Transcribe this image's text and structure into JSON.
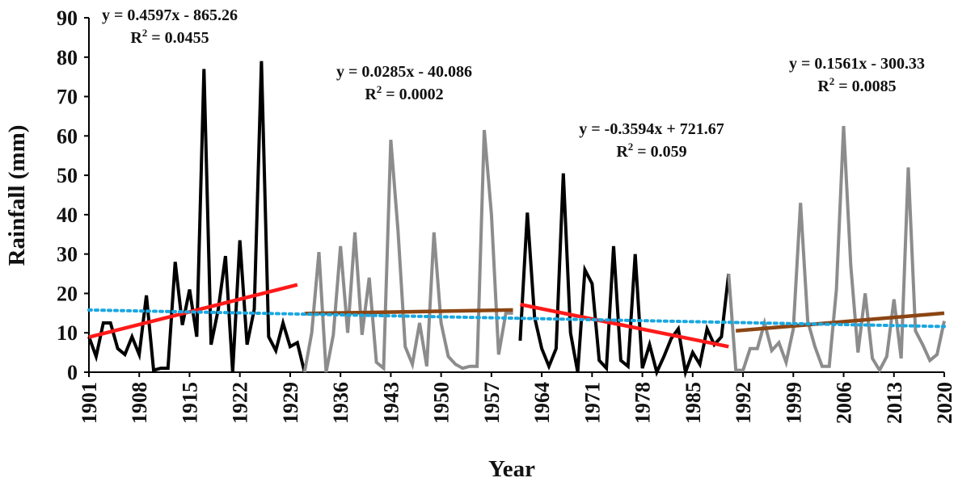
{
  "chart_data": {
    "type": "line",
    "xlabel": "Year",
    "ylabel": "Rainfall (mm)",
    "ylim": [
      0,
      90
    ],
    "xlim": [
      1901,
      2020
    ],
    "yticks": [
      0,
      10,
      20,
      30,
      40,
      50,
      60,
      70,
      80,
      90
    ],
    "xticks": [
      1901,
      1908,
      1915,
      1922,
      1929,
      1936,
      1943,
      1950,
      1957,
      1964,
      1971,
      1978,
      1985,
      1992,
      1999,
      2006,
      2013,
      2020
    ],
    "grid": false,
    "legend": "none",
    "series": [
      {
        "color": "#000000",
        "points": [
          [
            1901,
            9
          ],
          [
            1902,
            4
          ],
          [
            1903,
            12.5
          ],
          [
            1904,
            12.5
          ],
          [
            1905,
            6
          ],
          [
            1906,
            4.5
          ],
          [
            1907,
            9
          ],
          [
            1908,
            4.5
          ],
          [
            1909,
            19.5
          ],
          [
            1910,
            0.5
          ],
          [
            1911,
            1
          ],
          [
            1912,
            1
          ],
          [
            1913,
            28
          ],
          [
            1914,
            12
          ],
          [
            1915,
            21
          ],
          [
            1916,
            9
          ],
          [
            1917,
            77
          ],
          [
            1918,
            7
          ],
          [
            1919,
            16
          ],
          [
            1920,
            29.5
          ],
          [
            1921,
            0
          ],
          [
            1922,
            33.5
          ],
          [
            1923,
            7
          ],
          [
            1924,
            16
          ],
          [
            1925,
            79
          ],
          [
            1926,
            9
          ],
          [
            1927,
            5.5
          ],
          [
            1928,
            12.5
          ],
          [
            1929,
            6.5
          ],
          [
            1930,
            7.5
          ],
          [
            1931,
            0
          ]
        ]
      },
      {
        "color": "#8c8c8c",
        "points": [
          [
            1931,
            0
          ],
          [
            1932,
            10
          ],
          [
            1933,
            30.5
          ],
          [
            1934,
            0
          ],
          [
            1935,
            9.5
          ],
          [
            1936,
            32
          ],
          [
            1937,
            10
          ],
          [
            1938,
            35.5
          ],
          [
            1939,
            9.5
          ],
          [
            1940,
            24
          ],
          [
            1941,
            2.5
          ],
          [
            1942,
            1
          ],
          [
            1943,
            59
          ],
          [
            1944,
            36
          ],
          [
            1945,
            6.5
          ],
          [
            1946,
            2
          ],
          [
            1947,
            12.5
          ],
          [
            1948,
            1.5
          ],
          [
            1949,
            35.5
          ],
          [
            1950,
            12.5
          ],
          [
            1951,
            4
          ],
          [
            1952,
            2
          ],
          [
            1953,
            1
          ],
          [
            1954,
            1.5
          ],
          [
            1955,
            1.5
          ],
          [
            1956,
            61.5
          ],
          [
            1957,
            40
          ],
          [
            1958,
            4.5
          ],
          [
            1959,
            15
          ],
          [
            1960,
            15
          ]
        ]
      },
      {
        "color": "#000000",
        "points": [
          [
            1961,
            8
          ],
          [
            1962,
            40.5
          ],
          [
            1963,
            14
          ],
          [
            1964,
            6
          ],
          [
            1965,
            1.5
          ],
          [
            1966,
            6
          ],
          [
            1967,
            50.5
          ],
          [
            1968,
            10
          ],
          [
            1969,
            0
          ],
          [
            1970,
            26
          ],
          [
            1971,
            22.5
          ],
          [
            1972,
            3
          ],
          [
            1973,
            1
          ],
          [
            1974,
            32
          ],
          [
            1975,
            3
          ],
          [
            1976,
            1.5
          ],
          [
            1977,
            30
          ],
          [
            1978,
            1
          ],
          [
            1979,
            7
          ],
          [
            1980,
            0
          ],
          [
            1981,
            4
          ],
          [
            1982,
            8.5
          ],
          [
            1983,
            11
          ],
          [
            1984,
            0
          ],
          [
            1985,
            5
          ],
          [
            1986,
            2
          ],
          [
            1987,
            11
          ],
          [
            1988,
            7
          ],
          [
            1989,
            9
          ],
          [
            1990,
            25
          ]
        ]
      },
      {
        "color": "#8c8c8c",
        "points": [
          [
            1990,
            25
          ],
          [
            1991,
            0.5
          ],
          [
            1992,
            0.5
          ],
          [
            1993,
            6
          ],
          [
            1994,
            6
          ],
          [
            1995,
            12.5
          ],
          [
            1996,
            5.5
          ],
          [
            1997,
            7.5
          ],
          [
            1998,
            2.5
          ],
          [
            1999,
            11
          ],
          [
            2000,
            43
          ],
          [
            2001,
            13
          ],
          [
            2002,
            6.5
          ],
          [
            2003,
            1.5
          ],
          [
            2004,
            1.5
          ],
          [
            2005,
            21
          ],
          [
            2006,
            62.5
          ],
          [
            2007,
            27
          ],
          [
            2008,
            5
          ],
          [
            2009,
            20
          ],
          [
            2010,
            3.5
          ],
          [
            2011,
            0.5
          ],
          [
            2012,
            4
          ],
          [
            2013,
            18.5
          ],
          [
            2014,
            3.5
          ],
          [
            2015,
            52
          ],
          [
            2016,
            10.5
          ],
          [
            2017,
            7
          ],
          [
            2018,
            3
          ],
          [
            2019,
            4.5
          ],
          [
            2020,
            13
          ]
        ]
      }
    ],
    "trendlines": [
      {
        "x": [
          1901,
          1930
        ],
        "y": [
          8.9,
          22.2
        ],
        "color": "#ff1a1a",
        "style": "solid",
        "equation": "y = 0.4597x - 865.26",
        "r2_label": "R",
        "r2_value": " = 0.0455"
      },
      {
        "x": [
          1931,
          1960
        ],
        "y": [
          14.9,
          15.8
        ],
        "color": "#8b4513",
        "style": "solid",
        "equation": "y = 0.0285x - 40.086",
        "r2_label": "R",
        "r2_value": " = 0.0002"
      },
      {
        "x": [
          1961,
          1990
        ],
        "y": [
          17.2,
          6.5
        ],
        "color": "#ff1a1a",
        "style": "solid",
        "equation": "y = -0.3594x + 721.67",
        "r2_label": "R",
        "r2_value": " = 0.059"
      },
      {
        "x": [
          1991,
          2020
        ],
        "y": [
          10.5,
          15.0
        ],
        "color": "#8b4513",
        "style": "solid",
        "equation": "y = 0.1561x - 300.33",
        "r2_label": "R",
        "r2_value": " = 0.0085"
      },
      {
        "x": [
          1901,
          2020
        ],
        "y": [
          15.8,
          11.6
        ],
        "color": "#1aa7e0",
        "style": "dotted"
      }
    ]
  }
}
